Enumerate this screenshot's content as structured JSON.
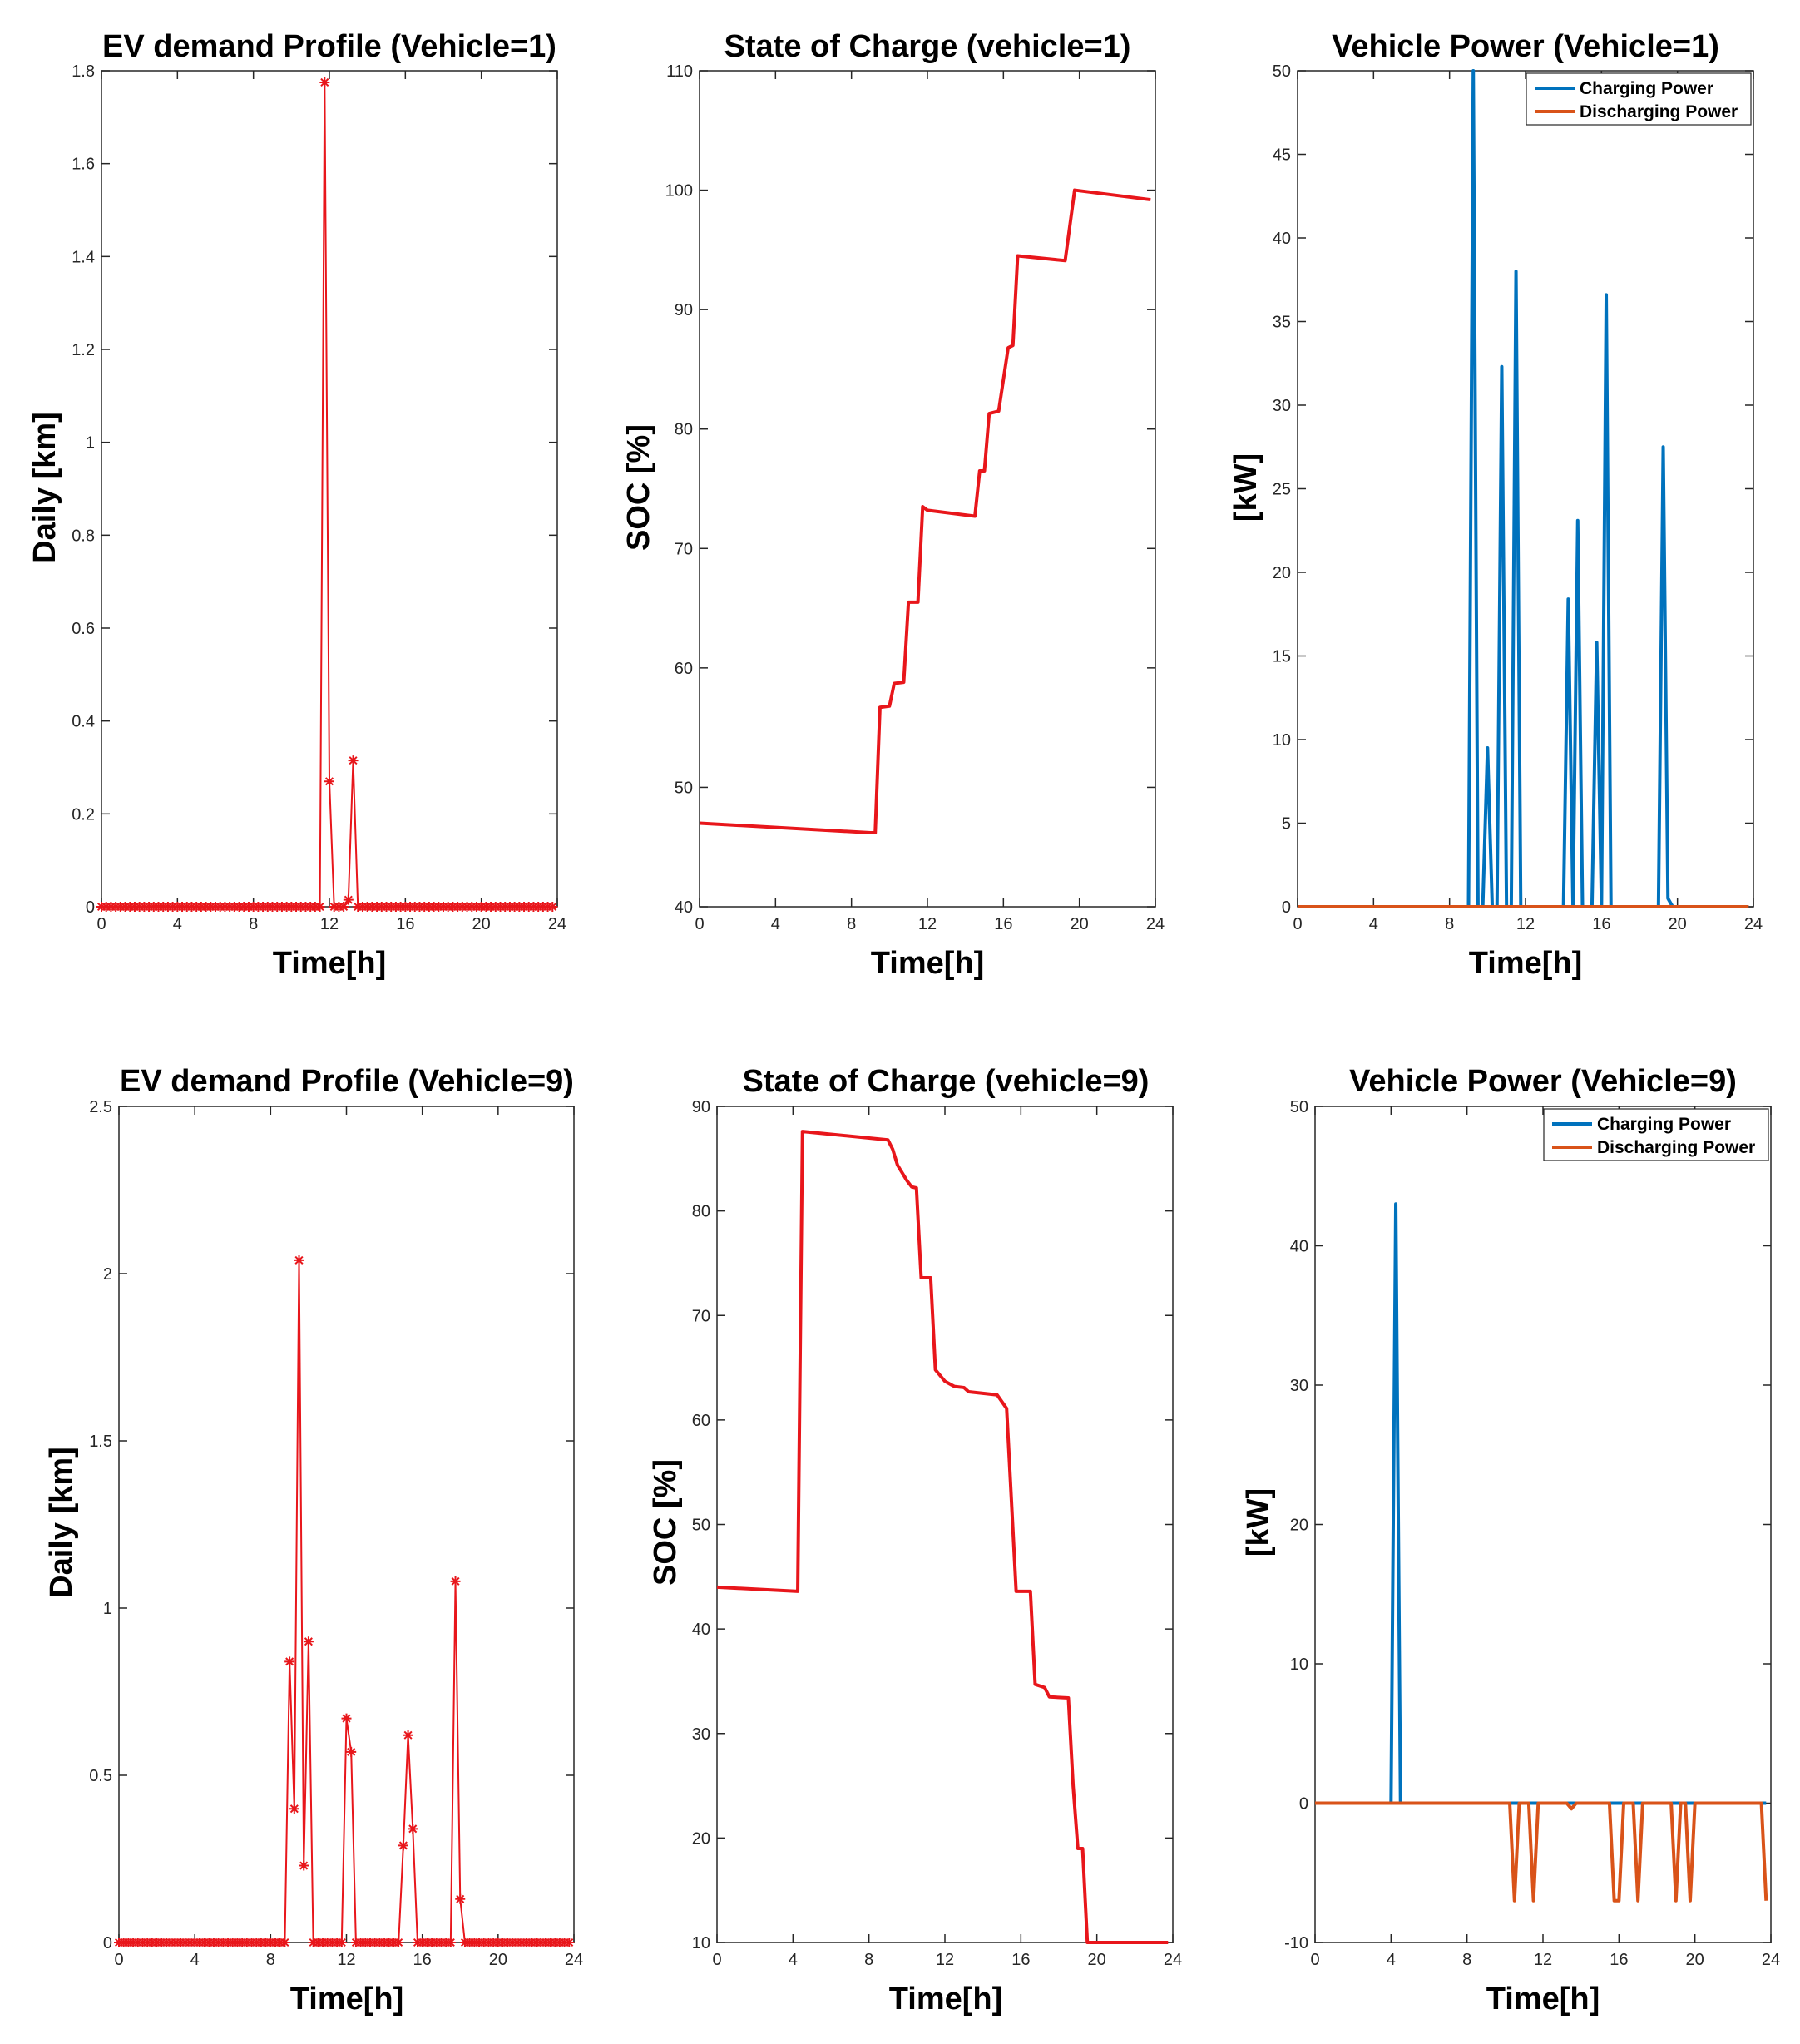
{
  "chart_data": [
    {
      "id": "p1",
      "type": "line",
      "title": "EV demand Profile (Vehicle=1)",
      "xlabel": "Time[h]",
      "ylabel": "Daily [km]",
      "xlim": [
        0,
        24
      ],
      "ylim": [
        0,
        1.8
      ],
      "xticks": [
        0,
        4,
        8,
        12,
        16,
        20,
        24
      ],
      "yticks": [
        0,
        0.2,
        0.4,
        0.6,
        0.8,
        1,
        1.2,
        1.4,
        1.6,
        1.8
      ],
      "ytick_labels": [
        "0",
        "0.2",
        "0.4",
        "0.6",
        "0.8",
        "1",
        "1.2",
        "1.4",
        "1.6",
        "1.8"
      ],
      "marker_zero_range": [
        0,
        23.75
      ],
      "series": [
        {
          "name": "Daily demand",
          "color": "#e8161b",
          "marker": "asterisk",
          "points": [
            [
              11.5,
              0
            ],
            [
              11.75,
              1.775
            ],
            [
              12.0,
              0.27
            ],
            [
              12.25,
              0
            ],
            [
              12.5,
              0
            ],
            [
              12.75,
              0
            ],
            [
              13.0,
              0.015
            ],
            [
              13.25,
              0.315
            ],
            [
              13.5,
              0
            ],
            [
              13.75,
              0
            ]
          ]
        }
      ]
    },
    {
      "id": "p2",
      "type": "line",
      "title": "State of Charge (vehicle=1)",
      "xlabel": "Time[h]",
      "ylabel": "SOC [%]",
      "xlim": [
        0,
        24
      ],
      "ylim": [
        40,
        110
      ],
      "xticks": [
        0,
        4,
        8,
        12,
        16,
        20,
        24
      ],
      "yticks": [
        40,
        50,
        60,
        70,
        80,
        90,
        100,
        110
      ],
      "ytick_labels": [
        "40",
        "50",
        "60",
        "70",
        "80",
        "90",
        "100",
        "110"
      ],
      "series": [
        {
          "name": "SOC",
          "color": "#e8161b",
          "points": [
            [
              0,
              47.0
            ],
            [
              9.0,
              46.2
            ],
            [
              9.25,
              46.2
            ],
            [
              9.5,
              56.7
            ],
            [
              10.0,
              56.8
            ],
            [
              10.25,
              58.7
            ],
            [
              10.75,
              58.8
            ],
            [
              11.0,
              65.5
            ],
            [
              11.5,
              65.5
            ],
            [
              11.75,
              73.5
            ],
            [
              12.0,
              73.2
            ],
            [
              14.5,
              72.7
            ],
            [
              14.75,
              76.5
            ],
            [
              15.0,
              76.5
            ],
            [
              15.25,
              81.3
            ],
            [
              15.75,
              81.5
            ],
            [
              16.25,
              86.8
            ],
            [
              16.5,
              87.0
            ],
            [
              16.75,
              94.5
            ],
            [
              19.25,
              94.1
            ],
            [
              19.75,
              100.0
            ],
            [
              23.75,
              99.2
            ]
          ]
        }
      ]
    },
    {
      "id": "p3",
      "type": "line",
      "title": "Vehicle Power (Vehicle=1)",
      "xlabel": "Time[h]",
      "ylabel": "[kW]",
      "xlim": [
        0,
        24
      ],
      "ylim": [
        0,
        50
      ],
      "xticks": [
        0,
        4,
        8,
        12,
        16,
        20,
        24
      ],
      "yticks": [
        0,
        5,
        10,
        15,
        20,
        25,
        30,
        35,
        40,
        45,
        50
      ],
      "ytick_labels": [
        "0",
        "5",
        "10",
        "15",
        "20",
        "25",
        "30",
        "35",
        "40",
        "45",
        "50"
      ],
      "legend": {
        "position": "top-right",
        "entries": [
          "Charging Power",
          "Discharging Power"
        ]
      },
      "series": [
        {
          "name": "Charging Power",
          "color": "#0072bd",
          "points": [
            [
              0,
              0
            ],
            [
              9.0,
              0
            ],
            [
              9.25,
              50
            ],
            [
              9.5,
              0
            ],
            [
              9.75,
              0
            ],
            [
              10.0,
              9.5
            ],
            [
              10.25,
              0
            ],
            [
              10.5,
              0
            ],
            [
              10.75,
              32.3
            ],
            [
              11.0,
              0
            ],
            [
              11.25,
              0
            ],
            [
              11.5,
              38.0
            ],
            [
              11.75,
              0
            ],
            [
              14.0,
              0
            ],
            [
              14.25,
              18.4
            ],
            [
              14.5,
              0
            ],
            [
              14.75,
              23.1
            ],
            [
              15.0,
              0
            ],
            [
              15.5,
              0
            ],
            [
              15.75,
              15.8
            ],
            [
              16.0,
              0
            ],
            [
              16.25,
              36.6
            ],
            [
              16.5,
              0
            ],
            [
              19.0,
              0
            ],
            [
              19.25,
              27.5
            ],
            [
              19.5,
              0.5
            ],
            [
              19.75,
              0
            ],
            [
              23.75,
              0
            ]
          ]
        },
        {
          "name": "Discharging Power",
          "color": "#d95319",
          "points": [
            [
              0,
              0
            ],
            [
              23.75,
              0
            ]
          ]
        }
      ]
    },
    {
      "id": "p4",
      "type": "line",
      "title": "EV demand Profile (Vehicle=9)",
      "xlabel": "Time[h]",
      "ylabel": "Daily [km]",
      "xlim": [
        0,
        24
      ],
      "ylim": [
        0,
        2.5
      ],
      "xticks": [
        0,
        4,
        8,
        12,
        16,
        20,
        24
      ],
      "yticks": [
        0,
        0.5,
        1,
        1.5,
        2,
        2.5
      ],
      "ytick_labels": [
        "0",
        "0.5",
        "1",
        "1.5",
        "2",
        "2.5"
      ],
      "marker_zero_range": [
        0,
        23.75
      ],
      "series": [
        {
          "name": "Daily demand",
          "color": "#e8161b",
          "marker": "asterisk",
          "points": [
            [
              8.75,
              0
            ],
            [
              9.0,
              0.84
            ],
            [
              9.25,
              0.4
            ],
            [
              9.5,
              2.04
            ],
            [
              9.75,
              0.23
            ],
            [
              10.0,
              0.9
            ],
            [
              10.25,
              0
            ],
            [
              11.75,
              0
            ],
            [
              12.0,
              0.67
            ],
            [
              12.25,
              0.57
            ],
            [
              12.5,
              0
            ],
            [
              14.75,
              0
            ],
            [
              15.0,
              0.29
            ],
            [
              15.25,
              0.62
            ],
            [
              15.5,
              0.34
            ],
            [
              15.75,
              0
            ],
            [
              17.5,
              0
            ],
            [
              17.75,
              1.08
            ],
            [
              18.0,
              0.13
            ],
            [
              18.25,
              0
            ]
          ]
        }
      ]
    },
    {
      "id": "p5",
      "type": "line",
      "title": "State of Charge (vehicle=9)",
      "xlabel": "Time[h]",
      "ylabel": "SOC [%]",
      "xlim": [
        0,
        24
      ],
      "ylim": [
        10,
        90
      ],
      "xticks": [
        0,
        4,
        8,
        12,
        16,
        20,
        24
      ],
      "yticks": [
        10,
        20,
        30,
        40,
        50,
        60,
        70,
        80,
        90
      ],
      "ytick_labels": [
        "10",
        "20",
        "30",
        "40",
        "50",
        "60",
        "70",
        "80",
        "90"
      ],
      "series": [
        {
          "name": "SOC",
          "color": "#e8161b",
          "points": [
            [
              0,
              44.0
            ],
            [
              4.25,
              43.6
            ],
            [
              4.5,
              87.6
            ],
            [
              9.0,
              86.8
            ],
            [
              9.25,
              85.9
            ],
            [
              9.5,
              84.4
            ],
            [
              10.0,
              82.9
            ],
            [
              10.25,
              82.3
            ],
            [
              10.5,
              82.2
            ],
            [
              10.75,
              73.6
            ],
            [
              11.25,
              73.6
            ],
            [
              11.5,
              64.8
            ],
            [
              12.0,
              63.7
            ],
            [
              12.5,
              63.2
            ],
            [
              13.0,
              63.1
            ],
            [
              13.25,
              62.7
            ],
            [
              14.75,
              62.4
            ],
            [
              15.25,
              61.1
            ],
            [
              15.75,
              43.6
            ],
            [
              16.5,
              43.6
            ],
            [
              16.75,
              34.7
            ],
            [
              17.25,
              34.4
            ],
            [
              17.5,
              33.5
            ],
            [
              18.5,
              33.4
            ],
            [
              18.75,
              25.0
            ],
            [
              19.0,
              19.0
            ],
            [
              19.25,
              19.0
            ],
            [
              19.5,
              10.0
            ],
            [
              23.75,
              10.0
            ]
          ]
        }
      ]
    },
    {
      "id": "p6",
      "type": "line",
      "title": "Vehicle Power (Vehicle=9)",
      "xlabel": "Time[h]",
      "ylabel": "[kW]",
      "xlim": [
        0,
        24
      ],
      "ylim": [
        -10,
        50
      ],
      "xticks": [
        0,
        4,
        8,
        12,
        16,
        20,
        24
      ],
      "yticks": [
        -10,
        0,
        10,
        20,
        30,
        40,
        50
      ],
      "ytick_labels": [
        "-10",
        "0",
        "10",
        "20",
        "30",
        "40",
        "50"
      ],
      "legend": {
        "position": "top-right",
        "entries": [
          "Charging Power",
          "Discharging Power"
        ]
      },
      "series": [
        {
          "name": "Charging Power",
          "color": "#0072bd",
          "points": [
            [
              0,
              0
            ],
            [
              4.0,
              0
            ],
            [
              4.25,
              43.0
            ],
            [
              4.5,
              0
            ],
            [
              23.75,
              0
            ]
          ]
        },
        {
          "name": "Discharging Power",
          "color": "#d95319",
          "points": [
            [
              0,
              0
            ],
            [
              10.25,
              0
            ],
            [
              10.5,
              -7
            ],
            [
              10.75,
              0
            ],
            [
              11.25,
              0
            ],
            [
              11.5,
              -7
            ],
            [
              11.75,
              0
            ],
            [
              13.25,
              0
            ],
            [
              13.5,
              -0.4
            ],
            [
              13.75,
              0
            ],
            [
              15.5,
              0
            ],
            [
              15.75,
              -7
            ],
            [
              16.0,
              -7
            ],
            [
              16.25,
              0
            ],
            [
              16.75,
              0
            ],
            [
              17.0,
              -7
            ],
            [
              17.25,
              0
            ],
            [
              18.75,
              0
            ],
            [
              19.0,
              -7
            ],
            [
              19.25,
              0
            ],
            [
              19.5,
              0
            ],
            [
              19.75,
              -7
            ],
            [
              20.0,
              0
            ],
            [
              23.5,
              0
            ],
            [
              23.75,
              -7
            ]
          ]
        }
      ]
    }
  ]
}
